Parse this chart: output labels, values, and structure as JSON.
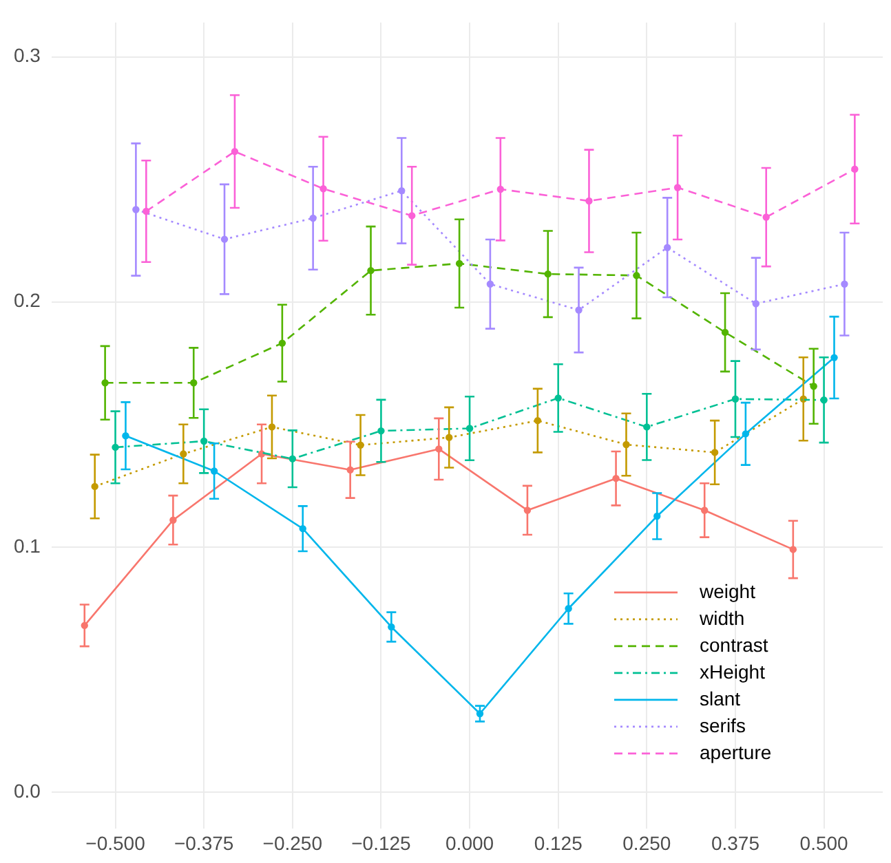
{
  "chart_data": {
    "type": "line",
    "marker": "circle",
    "grid": true,
    "legend": "bottom right",
    "xlim": [
      -0.59,
      0.583
    ],
    "ylim": [
      -0.015,
      0.314
    ],
    "xticks": [
      {
        "value": -0.5,
        "label": "−0.500"
      },
      {
        "value": -0.375,
        "label": "−0.375"
      },
      {
        "value": -0.25,
        "label": "−0.250"
      },
      {
        "value": -0.125,
        "label": "−0.125"
      },
      {
        "value": 0,
        "label": "0.000"
      },
      {
        "value": 0.125,
        "label": "0.125"
      },
      {
        "value": 0.25,
        "label": "0.250"
      },
      {
        "value": 0.375,
        "label": "0.375"
      },
      {
        "value": 0.5,
        "label": "0.500"
      }
    ],
    "yticks": [
      {
        "value": 0,
        "label": "0.0"
      },
      {
        "value": 0.1,
        "label": "0.1"
      },
      {
        "value": 0.2,
        "label": "0.2"
      },
      {
        "value": 0.3,
        "label": "0.3"
      }
    ],
    "series": [
      {
        "name": "weight",
        "color": "#f8766d",
        "line_style": "solid",
        "x": [
          -0.5435,
          -0.4185,
          -0.2935,
          -0.1685,
          -0.0435,
          0.0815,
          0.2065,
          0.3315,
          0.4565
        ],
        "values": [
          0.068,
          0.111,
          0.138,
          0.1315,
          0.14,
          0.115,
          0.128,
          0.115,
          0.099
        ],
        "errors": [
          0.0085,
          0.01,
          0.012,
          0.0115,
          0.0125,
          0.01,
          0.011,
          0.011,
          0.0117
        ]
      },
      {
        "name": "width",
        "color": "#c49a00",
        "line_style": "dotted",
        "x": [
          -0.529,
          -0.404,
          -0.279,
          -0.154,
          -0.029,
          0.096,
          0.221,
          0.346,
          0.471
        ],
        "values": [
          0.1247,
          0.138,
          0.149,
          0.1416,
          0.1447,
          0.1516,
          0.1418,
          0.1386,
          0.1604
        ],
        "errors": [
          0.013,
          0.012,
          0.0128,
          0.0123,
          0.0123,
          0.013,
          0.0127,
          0.013,
          0.017
        ]
      },
      {
        "name": "contrast",
        "color": "#53b400",
        "line_style": "dashed",
        "x": [
          -0.5145,
          -0.3895,
          -0.2645,
          -0.1395,
          -0.0145,
          0.1105,
          0.2355,
          0.3605,
          0.4855
        ],
        "values": [
          0.167,
          0.167,
          0.1832,
          0.2128,
          0.2157,
          0.2114,
          0.2108,
          0.1876,
          0.1656
        ],
        "errors": [
          0.015,
          0.0143,
          0.0157,
          0.018,
          0.018,
          0.0176,
          0.0175,
          0.016,
          0.0153
        ]
      },
      {
        "name": "xHeight",
        "color": "#00c094",
        "line_style": "dashdot",
        "x": [
          -0.5,
          -0.375,
          -0.25,
          -0.125,
          0,
          0.125,
          0.25,
          0.375,
          0.5
        ],
        "values": [
          0.1407,
          0.1432,
          0.136,
          0.1474,
          0.1484,
          0.1608,
          0.149,
          0.1604,
          0.16
        ],
        "errors": [
          0.0147,
          0.013,
          0.0116,
          0.0127,
          0.013,
          0.0138,
          0.0135,
          0.0155,
          0.0174
        ]
      },
      {
        "name": "slant",
        "color": "#00b6eb",
        "line_style": "solid",
        "x": [
          -0.4855,
          -0.3605,
          -0.2355,
          -0.1105,
          0.0145,
          0.1395,
          0.2645,
          0.3895,
          0.5145
        ],
        "values": [
          0.1454,
          0.131,
          0.1075,
          0.0674,
          0.032,
          0.0749,
          0.1126,
          0.1462,
          0.1773
        ],
        "errors": [
          0.0137,
          0.0113,
          0.0092,
          0.006,
          0.0032,
          0.0062,
          0.0094,
          0.0127,
          0.0167
        ]
      },
      {
        "name": "serifs",
        "color": "#a58aff",
        "line_style": "dotted",
        "x": [
          -0.471,
          -0.346,
          -0.221,
          -0.096,
          0.029,
          0.154,
          0.279,
          0.404,
          0.529
        ],
        "values": [
          0.2377,
          0.2256,
          0.2342,
          0.2454,
          0.2073,
          0.1967,
          0.2222,
          0.1993,
          0.2073
        ],
        "errors": [
          0.027,
          0.0224,
          0.021,
          0.0215,
          0.0182,
          0.0173,
          0.0203,
          0.0187,
          0.021
        ]
      },
      {
        "name": "aperture",
        "color": "#fb61d7",
        "line_style": "dashed",
        "x": [
          -0.4565,
          -0.3315,
          -0.2065,
          -0.0815,
          0.0435,
          0.1685,
          0.2935,
          0.4185,
          0.5435
        ],
        "values": [
          0.237,
          0.2614,
          0.2462,
          0.2352,
          0.246,
          0.2412,
          0.2467,
          0.2346,
          0.2542
        ],
        "errors": [
          0.0207,
          0.023,
          0.0212,
          0.02,
          0.0209,
          0.0209,
          0.0212,
          0.0201,
          0.0222
        ]
      }
    ]
  }
}
